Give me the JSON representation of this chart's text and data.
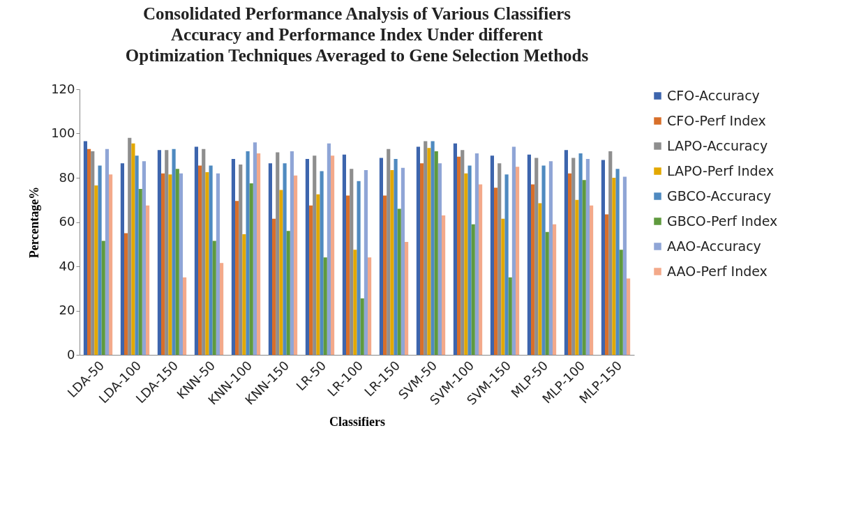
{
  "chart_data": {
    "type": "bar",
    "title": "Consolidated Performance  Analysis of Various Classifiers Accuracy and Performance Index  Under  different Optimization Techniques Averaged to Gene Selection Methods",
    "xlabel": "Classifiers",
    "ylabel": "Percentage%",
    "categories": [
      "LDA-50",
      "LDA-100",
      "LDA-150",
      "KNN-50",
      "KNN-100",
      "KNN-150",
      "LR-50",
      "LR-100",
      "LR-150",
      "SVM-50",
      "SVM-100",
      "SVM-150",
      "MLP-50",
      "MLP-100",
      "MLP-150"
    ],
    "series": [
      {
        "name": "CFO-Accuracy",
        "color": "#3d65ad",
        "values": [
          96.5,
          86.5,
          92.5,
          94,
          88.5,
          86.5,
          88.5,
          90.5,
          89,
          94,
          95.5,
          90,
          90.5,
          92.5,
          88
        ]
      },
      {
        "name": "CFO-Perf Index",
        "color": "#d86f2a",
        "values": [
          93,
          55,
          82,
          85.5,
          69.5,
          61.5,
          67.5,
          72,
          72,
          86.5,
          89.5,
          75.5,
          77,
          82,
          63.5
        ]
      },
      {
        "name": "LAPO-Accuracy",
        "color": "#8e8e8e",
        "values": [
          92,
          98,
          92.5,
          93,
          86,
          91.5,
          90,
          84,
          93,
          96.5,
          92.5,
          86.5,
          89,
          89,
          92
        ]
      },
      {
        "name": "LAPO-Perf Index",
        "color": "#e3a800",
        "values": [
          76.5,
          95.5,
          81.5,
          82.5,
          54.5,
          74.5,
          72.5,
          47.5,
          83.5,
          93.5,
          82,
          61.5,
          68.5,
          70,
          80
        ]
      },
      {
        "name": "GBCO-Accuracy",
        "color": "#4f8ac0",
        "values": [
          85.5,
          90,
          93,
          85.5,
          92,
          86.5,
          83,
          78.5,
          88.5,
          96.5,
          85.5,
          81.5,
          85.5,
          91,
          84
        ]
      },
      {
        "name": "GBCO-Perf Index",
        "color": "#5f9a3e",
        "values": [
          51.5,
          75,
          84,
          51.5,
          77.5,
          56,
          44,
          25.5,
          66,
          92,
          59,
          35,
          55.5,
          79,
          47.5
        ]
      },
      {
        "name": "AAO-Accuracy",
        "color": "#8fa5d6",
        "values": [
          93,
          87.5,
          82,
          82,
          96,
          92,
          95.5,
          83.5,
          84.5,
          86.5,
          91,
          94,
          87.5,
          88.5,
          80.5
        ]
      },
      {
        "name": "AAO-Perf Index",
        "color": "#f3a98a",
        "values": [
          81.5,
          67.5,
          35,
          41.5,
          91,
          81,
          90,
          44,
          51,
          63,
          77,
          85,
          59,
          67.5,
          34.5
        ]
      }
    ],
    "ylim": [
      0,
      120
    ],
    "yticks": [
      0,
      20,
      40,
      60,
      80,
      100,
      120
    ],
    "legend": "right"
  }
}
